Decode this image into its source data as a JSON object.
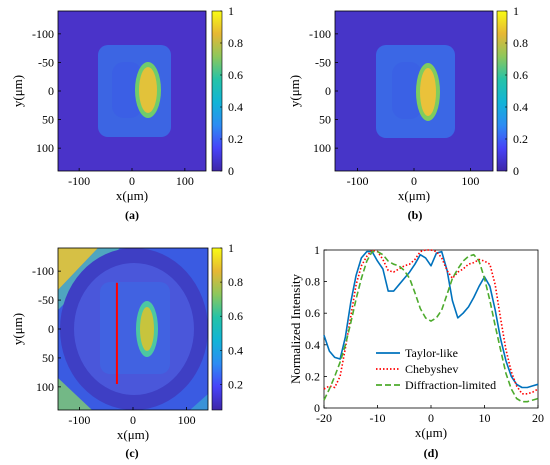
{
  "colormap": [
    "#3e26a8",
    "#4743f8",
    "#2d8cf3",
    "#12b4d7",
    "#25c3a8",
    "#8dc75c",
    "#e6b734",
    "#f9fb15"
  ],
  "chart_data": [
    {
      "type": "heatmap",
      "panel": "a",
      "caption": "(a)",
      "xlabel": "x(μm)",
      "ylabel": "y(μm)",
      "xlim": [
        -140,
        140
      ],
      "ylim": [
        -140,
        140
      ],
      "xticks": [
        -100,
        0,
        100
      ],
      "yticks": [
        -100,
        -50,
        0,
        50,
        100
      ],
      "colorbar": {
        "range": [
          0,
          1
        ],
        "ticks": [
          0,
          0.2,
          0.4,
          0.6,
          0.8,
          1
        ]
      }
    },
    {
      "type": "heatmap",
      "panel": "b",
      "caption": "(b)",
      "xlabel": "x(μm)",
      "ylabel": "y(μm)",
      "xlim": [
        -140,
        140
      ],
      "ylim": [
        -140,
        140
      ],
      "xticks": [
        -100,
        0,
        100
      ],
      "yticks": [
        -100,
        -50,
        0,
        50,
        100
      ],
      "colorbar": {
        "range": [
          0,
          1
        ],
        "ticks": [
          0,
          0.2,
          0.4,
          0.6,
          0.8,
          1
        ]
      }
    },
    {
      "type": "heatmap",
      "panel": "c",
      "caption": "(c)",
      "xlabel": "x(μm)",
      "ylabel": "y(μm)",
      "xlim": [
        -140,
        140
      ],
      "ylim": [
        -140,
        140
      ],
      "xticks": [
        -100,
        0,
        100
      ],
      "yticks": [
        -100,
        -50,
        0,
        50,
        100
      ],
      "colorbar": {
        "range": [
          0.05,
          1
        ],
        "ticks": [
          0.2,
          0.4,
          0.6,
          0.8,
          1
        ]
      },
      "cut_line": {
        "x": -30,
        "y": [
          -80,
          95
        ],
        "color": "#ff0000"
      }
    },
    {
      "type": "line",
      "panel": "d",
      "caption": "(d)",
      "xlabel": "x(μm)",
      "ylabel": "Normalized Intensity",
      "xlim": [
        -20,
        20
      ],
      "ylim": [
        0,
        1
      ],
      "xticks": [
        -20,
        -10,
        0,
        10,
        20
      ],
      "yticks": [
        0,
        0.2,
        0.4,
        0.6,
        0.8,
        1
      ],
      "legend_position": "center-right",
      "series": [
        {
          "name": "Taylor-like",
          "color": "#0072bd",
          "style": "solid",
          "x": [
            -20,
            -19,
            -18,
            -17,
            -16,
            -15,
            -14,
            -13,
            -12,
            -11,
            -10,
            -9,
            -8,
            -7,
            -6,
            -5,
            -4,
            -3,
            -2,
            -1,
            0,
            1,
            2,
            3,
            4,
            5,
            6,
            7,
            8,
            9,
            10,
            11,
            12,
            13,
            14,
            15,
            16,
            17,
            18,
            19,
            20
          ],
          "y": [
            0.46,
            0.36,
            0.32,
            0.31,
            0.45,
            0.67,
            0.84,
            0.95,
            0.99,
            0.99,
            0.93,
            0.88,
            0.74,
            0.74,
            0.78,
            0.82,
            0.86,
            0.91,
            0.97,
            0.95,
            0.9,
            0.98,
            0.99,
            0.87,
            0.68,
            0.57,
            0.6,
            0.64,
            0.7,
            0.77,
            0.83,
            0.77,
            0.62,
            0.44,
            0.3,
            0.2,
            0.15,
            0.13,
            0.13,
            0.14,
            0.15
          ]
        },
        {
          "name": "Chebyshev",
          "color": "#ff0000",
          "style": "dotted",
          "x": [
            -20,
            -19,
            -18,
            -17,
            -16,
            -15,
            -14,
            -13,
            -12,
            -11,
            -10,
            -9,
            -8,
            -7,
            -6,
            -5,
            -4,
            -3,
            -2,
            -1,
            0,
            1,
            2,
            3,
            4,
            5,
            6,
            7,
            8,
            9,
            10,
            11,
            12,
            13,
            14,
            15,
            16,
            17,
            18,
            19,
            20
          ],
          "y": [
            0.12,
            0.14,
            0.13,
            0.2,
            0.38,
            0.58,
            0.78,
            0.9,
            0.96,
            1.0,
            0.99,
            0.94,
            0.87,
            0.86,
            0.88,
            0.9,
            0.91,
            0.94,
            0.99,
            1.0,
            1.0,
            0.99,
            0.95,
            0.87,
            0.82,
            0.86,
            0.88,
            0.91,
            0.92,
            0.94,
            0.93,
            0.91,
            0.78,
            0.57,
            0.37,
            0.23,
            0.14,
            0.09,
            0.09,
            0.1,
            0.12
          ]
        },
        {
          "name": "Diffraction-limited",
          "color": "#4dab2d",
          "style": "dashed",
          "x": [
            -20,
            -19,
            -18,
            -17,
            -16,
            -15,
            -14,
            -13,
            -12,
            -11,
            -10,
            -9,
            -8,
            -7,
            -6,
            -5,
            -4,
            -3,
            -2,
            -1,
            0,
            1,
            2,
            3,
            4,
            5,
            6,
            7,
            8,
            9,
            10,
            11,
            12,
            13,
            14,
            15,
            16,
            17,
            18,
            19,
            20
          ],
          "y": [
            0.05,
            0.12,
            0.2,
            0.29,
            0.4,
            0.54,
            0.69,
            0.82,
            0.93,
            0.99,
            0.99,
            0.97,
            0.93,
            0.91,
            0.9,
            0.87,
            0.82,
            0.73,
            0.63,
            0.57,
            0.55,
            0.57,
            0.62,
            0.72,
            0.82,
            0.88,
            0.93,
            0.96,
            0.97,
            0.93,
            0.82,
            0.68,
            0.52,
            0.37,
            0.22,
            0.12,
            0.06,
            0.04,
            0.04,
            0.05,
            0.06
          ]
        }
      ]
    }
  ]
}
